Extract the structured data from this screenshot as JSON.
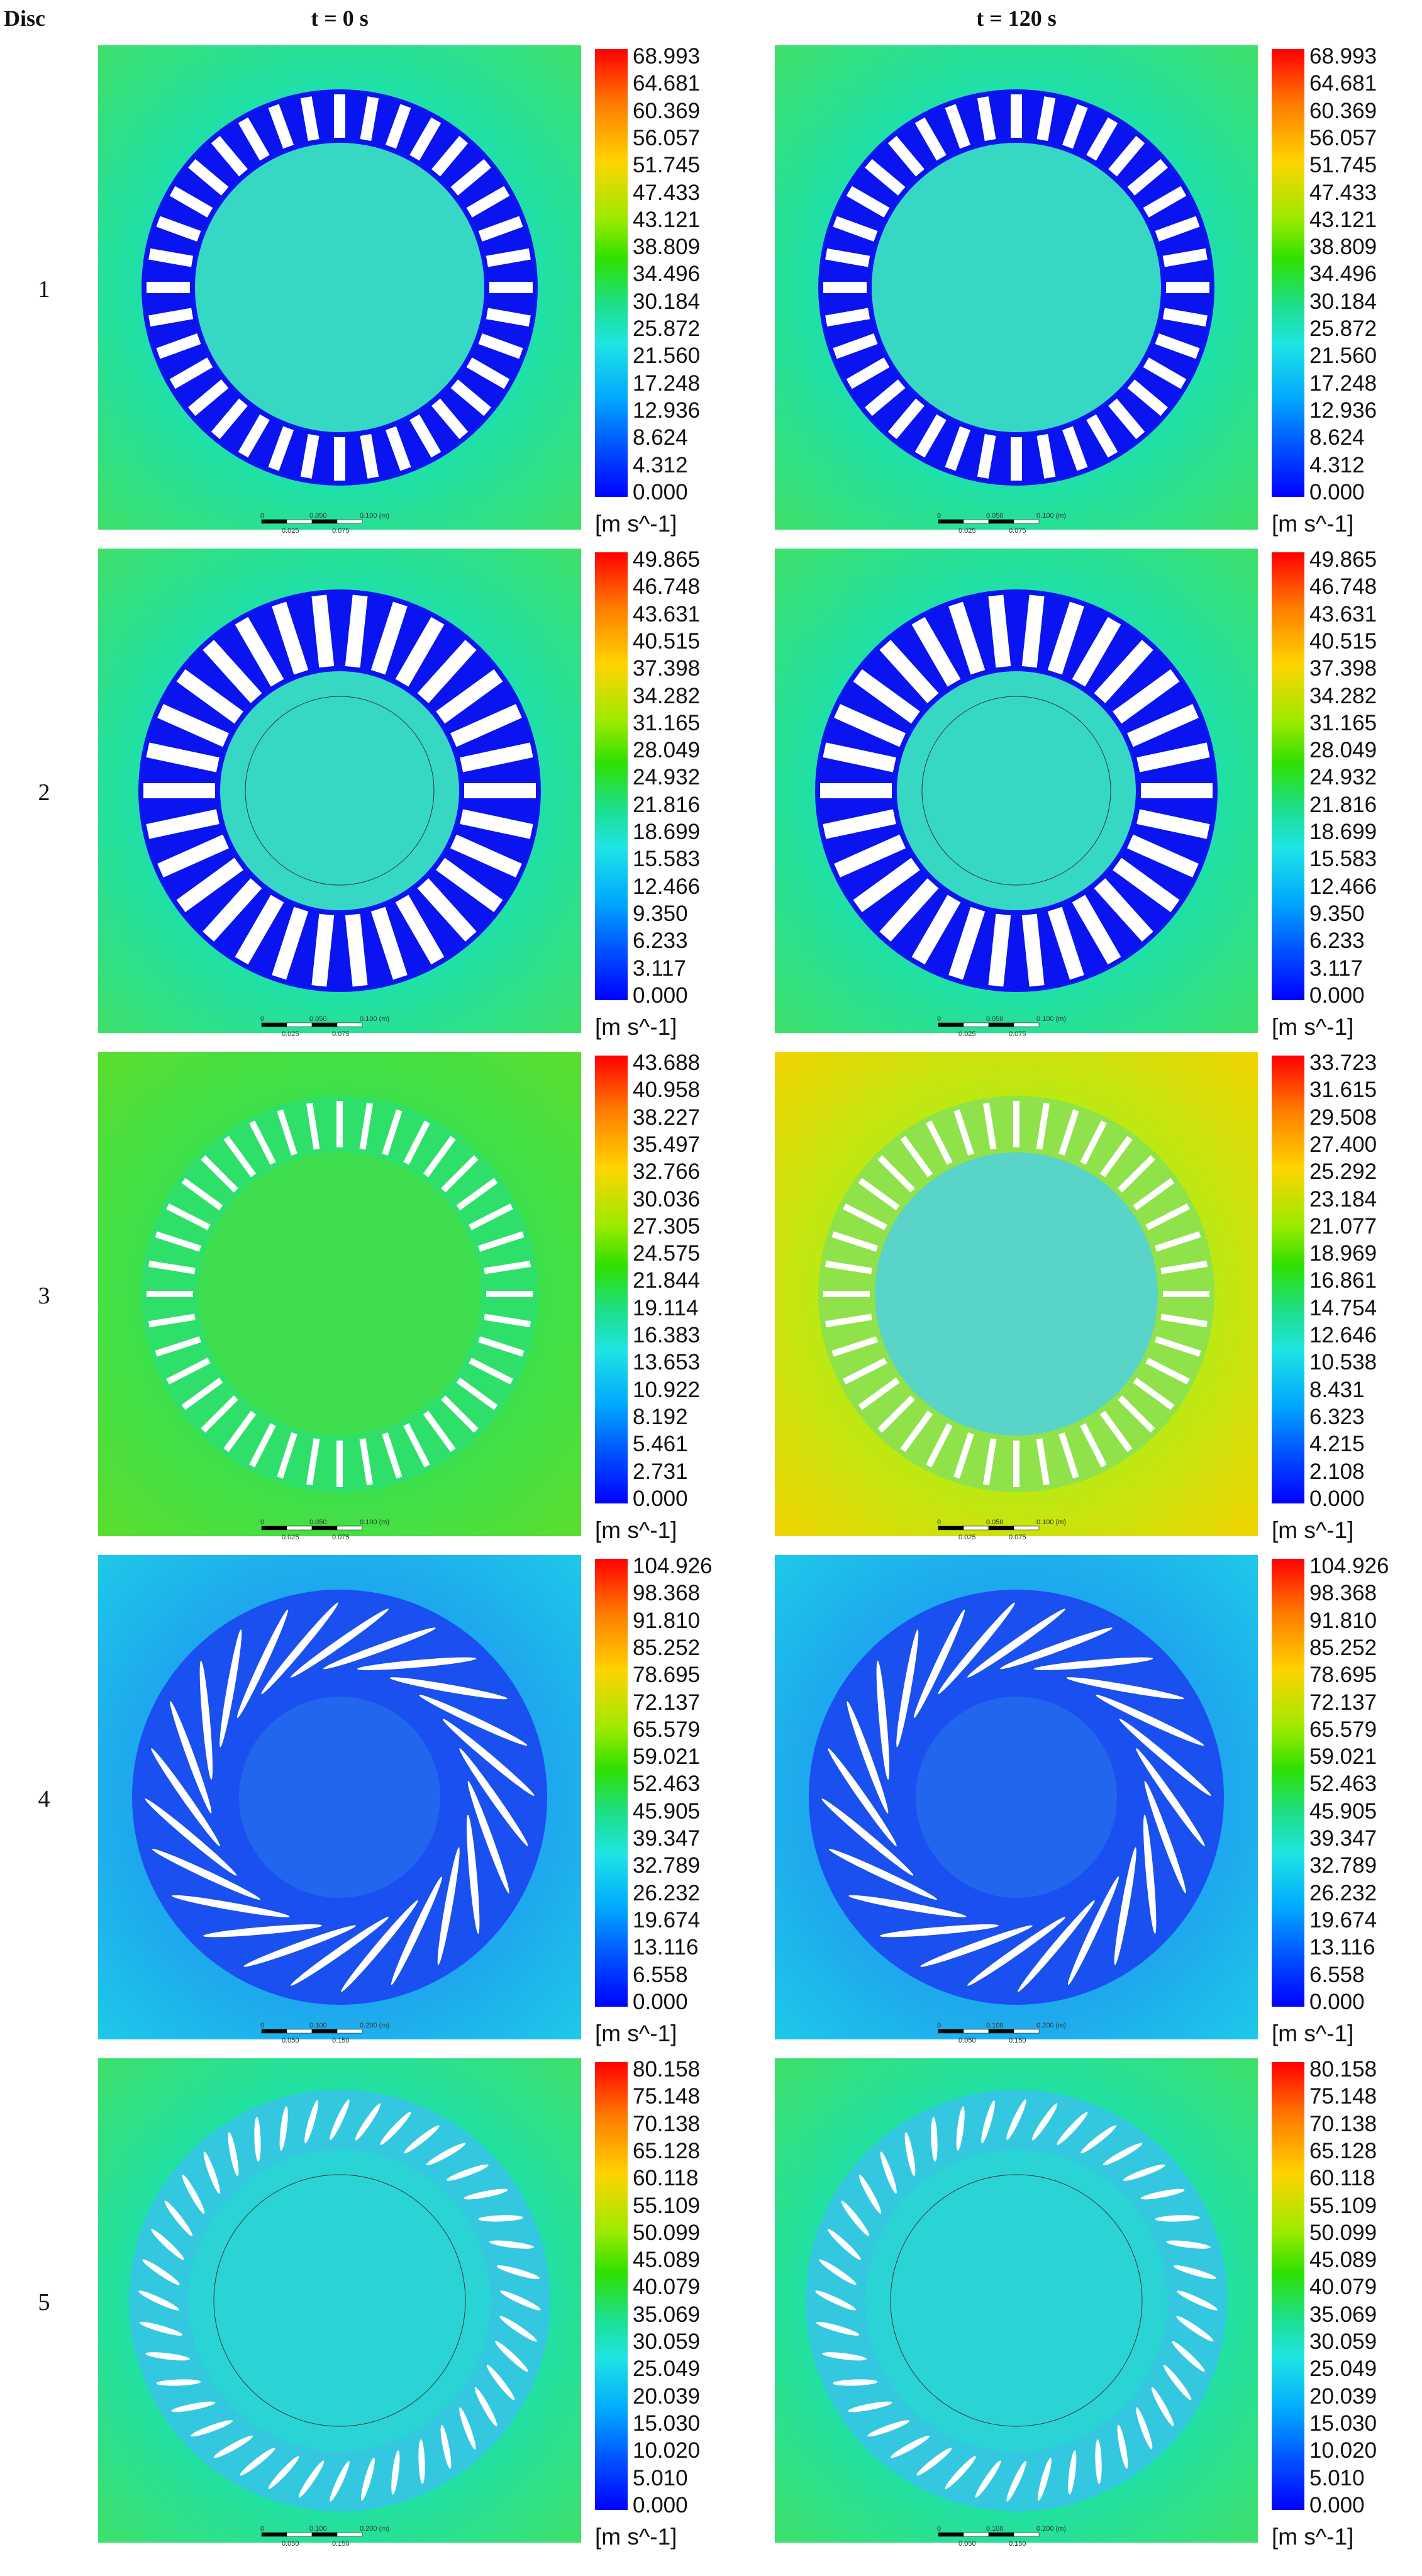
{
  "header": {
    "disc": "Disc",
    "col0": "t = 0 s",
    "col1": "t = 120 s"
  },
  "colors": {
    "field_low": "#0000ff",
    "field_high": "#ff0000",
    "field_mid": "#1ee4c8"
  },
  "rows": [
    {
      "disc": "1",
      "panels": [
        {
          "time": "t = 0 s",
          "blade": "slot",
          "ticks": [
            "68.993",
            "64.681",
            "60.369",
            "56.057",
            "51.745",
            "47.433",
            "43.121",
            "38.809",
            "34.496",
            "30.184",
            "25.872",
            "21.560",
            "17.248",
            "12.936",
            "8.624",
            "4.312",
            "0.000"
          ],
          "unit": "[m s^-1]",
          "scale_labels": [
            "0",
            "0.050",
            "0.100 (m)",
            "0.025",
            "0.075"
          ]
        },
        {
          "time": "t = 120 s",
          "blade": "slot",
          "ticks": [
            "68.993",
            "64.681",
            "60.369",
            "56.057",
            "51.745",
            "47.433",
            "43.121",
            "38.809",
            "34.496",
            "30.184",
            "25.872",
            "21.560",
            "17.248",
            "12.936",
            "8.624",
            "4.312",
            "0.000"
          ],
          "unit": "[m s^-1]",
          "scale_labels": [
            "0",
            "0.050",
            "0.100 (m)",
            "0.025",
            "0.075"
          ]
        }
      ]
    },
    {
      "disc": "2",
      "panels": [
        {
          "time": "t = 0 s",
          "blade": "slot-wide",
          "ticks": [
            "49.865",
            "46.748",
            "43.631",
            "40.515",
            "37.398",
            "34.282",
            "31.165",
            "28.049",
            "24.932",
            "21.816",
            "18.699",
            "15.583",
            "12.466",
            "9.350",
            "6.233",
            "3.117",
            "0.000"
          ],
          "unit": "[m s^-1]",
          "scale_labels": [
            "0",
            "0.050",
            "0.100 (m)",
            "0.025",
            "0.075"
          ]
        },
        {
          "time": "t = 120 s",
          "blade": "slot-wide",
          "ticks": [
            "49.865",
            "46.748",
            "43.631",
            "40.515",
            "37.398",
            "34.282",
            "31.165",
            "28.049",
            "24.932",
            "21.816",
            "18.699",
            "15.583",
            "12.466",
            "9.350",
            "6.233",
            "3.117",
            "0.000"
          ],
          "unit": "[m s^-1]",
          "scale_labels": [
            "0",
            "0.050",
            "0.100 (m)",
            "0.025",
            "0.075"
          ]
        }
      ]
    },
    {
      "disc": "3",
      "panels": [
        {
          "time": "t = 0 s",
          "blade": "thin",
          "ticks": [
            "43.688",
            "40.958",
            "38.227",
            "35.497",
            "32.766",
            "30.036",
            "27.305",
            "24.575",
            "21.844",
            "19.114",
            "16.383",
            "13.653",
            "10.922",
            "8.192",
            "5.461",
            "2.731",
            "0.000"
          ],
          "unit": "[m s^-1]",
          "scale_labels": [
            "0",
            "0.050",
            "0.100 (m)",
            "0.025",
            "0.075"
          ]
        },
        {
          "time": "t = 120 s",
          "blade": "thin",
          "ticks": [
            "33.723",
            "31.615",
            "29.508",
            "27.400",
            "25.292",
            "23.184",
            "21.077",
            "18.969",
            "16.861",
            "14.754",
            "12.646",
            "10.538",
            "8.431",
            "6.323",
            "4.215",
            "2.108",
            "0.000"
          ],
          "unit": "[m s^-1]",
          "scale_labels": [
            "0",
            "0.050",
            "0.100 (m)",
            "0.025",
            "0.075"
          ]
        }
      ]
    },
    {
      "disc": "4",
      "panels": [
        {
          "time": "t = 0 s",
          "blade": "curved",
          "ticks": [
            "104.926",
            "98.368",
            "91.810",
            "85.252",
            "78.695",
            "72.137",
            "65.579",
            "59.021",
            "52.463",
            "45.905",
            "39.347",
            "32.789",
            "26.232",
            "19.674",
            "13.116",
            "6.558",
            "0.000"
          ],
          "unit": "[m s^-1]",
          "scale_labels": [
            "0",
            "0.100",
            "0.200 (m)",
            "0.050",
            "0.150"
          ]
        },
        {
          "time": "t = 120 s",
          "blade": "curved",
          "ticks": [
            "104.926",
            "98.368",
            "91.810",
            "85.252",
            "78.695",
            "72.137",
            "65.579",
            "59.021",
            "52.463",
            "45.905",
            "39.347",
            "32.789",
            "26.232",
            "19.674",
            "13.116",
            "6.558",
            "0.000"
          ],
          "unit": "[m s^-1]",
          "scale_labels": [
            "0",
            "0.100",
            "0.200 (m)",
            "0.050",
            "0.150"
          ]
        }
      ]
    },
    {
      "disc": "5",
      "panels": [
        {
          "time": "t = 0 s",
          "blade": "airfoil",
          "ticks": [
            "80.158",
            "75.148",
            "70.138",
            "65.128",
            "60.118",
            "55.109",
            "50.099",
            "45.089",
            "40.079",
            "35.069",
            "30.059",
            "25.049",
            "20.039",
            "15.030",
            "10.020",
            "5.010",
            "0.000"
          ],
          "unit": "[m s^-1]",
          "scale_labels": [
            "0",
            "0.100",
            "0.200 (m)",
            "0.050",
            "0.150"
          ]
        },
        {
          "time": "t = 120 s",
          "blade": "airfoil",
          "ticks": [
            "80.158",
            "75.148",
            "70.138",
            "65.128",
            "60.118",
            "55.109",
            "50.099",
            "45.089",
            "40.079",
            "35.069",
            "30.059",
            "25.049",
            "20.039",
            "15.030",
            "10.020",
            "5.010",
            "0.000"
          ],
          "unit": "[m s^-1]",
          "scale_labels": [
            "0",
            "0.100",
            "0.200 (m)",
            "0.050",
            "0.150"
          ]
        }
      ]
    }
  ]
}
